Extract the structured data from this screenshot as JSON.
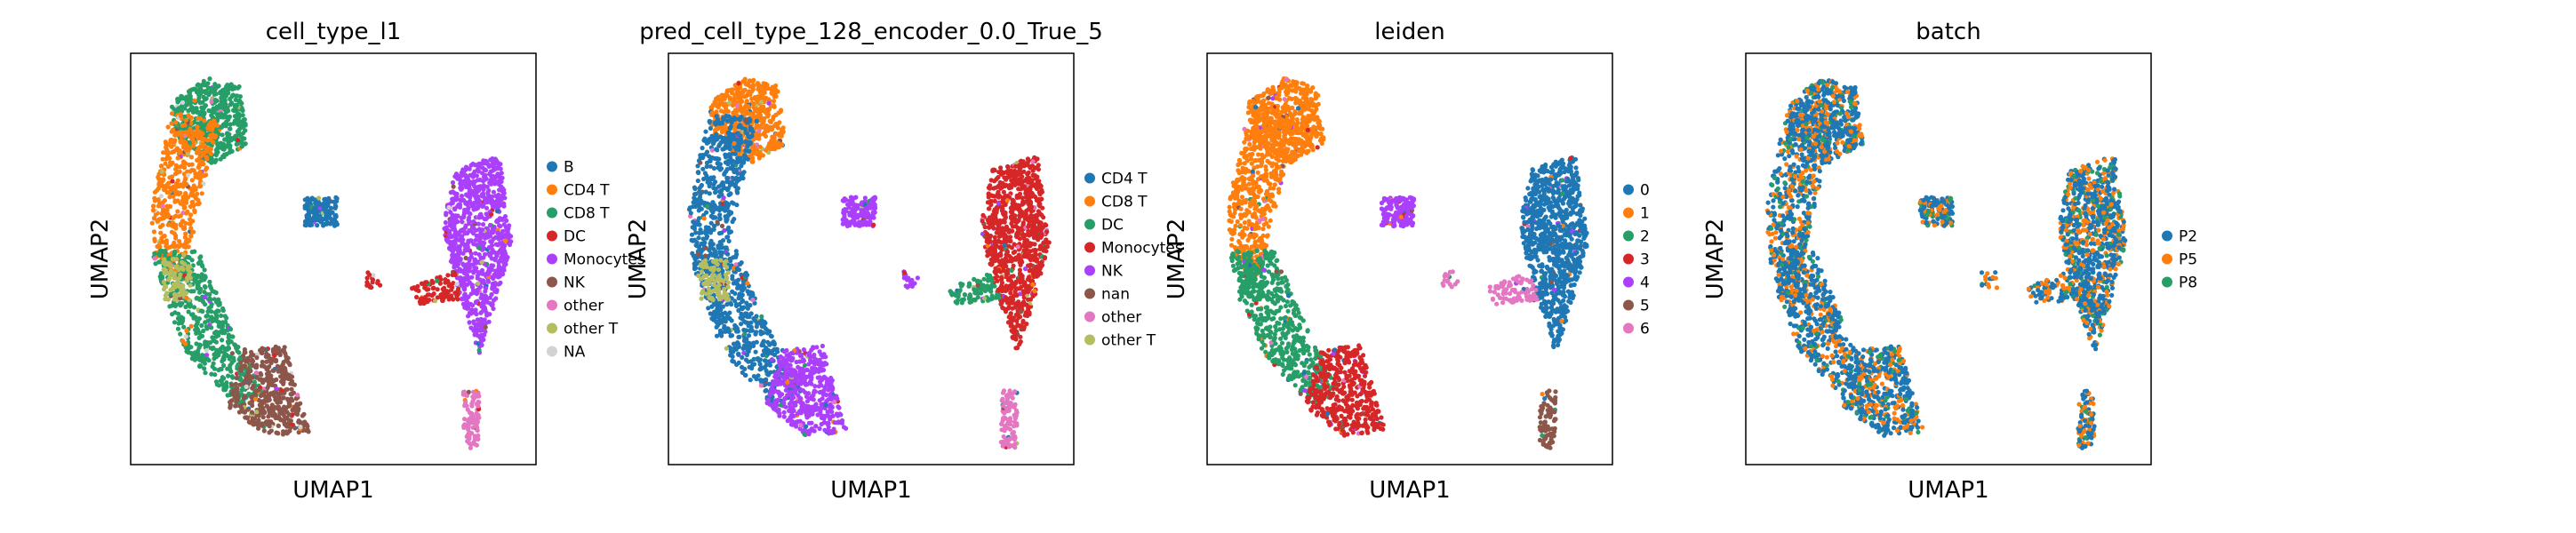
{
  "figure": {
    "axis_x_label": "UMAP1",
    "axis_y_label": "UMAP2"
  },
  "colors": {
    "tab_blue": "#1f77b4",
    "tab_orange": "#ff7f0e",
    "tab_green": "#279e68",
    "tab_red": "#d62728",
    "tab_purple": "#aa40fc",
    "tab_brown": "#8c564b",
    "tab_pink": "#e377c2",
    "tab_olive": "#b5bd61",
    "na_gray": "#d3d3d3"
  },
  "chart_data": [
    {
      "type": "scatter",
      "title": "cell_type_l1",
      "xlabel": "UMAP1",
      "ylabel": "UMAP2",
      "grid": false,
      "legend_placement": "right",
      "legend": [
        {
          "label": "B",
          "color": "#1f77b4"
        },
        {
          "label": "CD4 T",
          "color": "#ff7f0e"
        },
        {
          "label": "CD8 T",
          "color": "#279e68"
        },
        {
          "label": "DC",
          "color": "#d62728"
        },
        {
          "label": "Monocytes",
          "color": "#aa40fc"
        },
        {
          "label": "NK",
          "color": "#8c564b"
        },
        {
          "label": "other",
          "color": "#e377c2"
        },
        {
          "label": "other T",
          "color": "#b5bd61"
        },
        {
          "label": "NA",
          "color": "#d3d3d3"
        }
      ],
      "regions": {
        "top": "CD8 T",
        "left_arm": "CD4 T",
        "left_lower": "CD8 T",
        "bottom_left": "NK",
        "small_blob": "B",
        "right_blob": "Monocytes",
        "right_bridge": "DC",
        "bottom_right": "other",
        "mid_dots": "DC",
        "accent": "other T"
      }
    },
    {
      "type": "scatter",
      "title": "pred_cell_type_128_encoder_0.0_True_5",
      "xlabel": "UMAP1",
      "ylabel": "UMAP2",
      "grid": false,
      "legend_placement": "right",
      "legend": [
        {
          "label": "CD4 T",
          "color": "#1f77b4"
        },
        {
          "label": "CD8 T",
          "color": "#ff7f0e"
        },
        {
          "label": "DC",
          "color": "#279e68"
        },
        {
          "label": "Monocytes",
          "color": "#d62728"
        },
        {
          "label": "NK",
          "color": "#aa40fc"
        },
        {
          "label": "nan",
          "color": "#8c564b"
        },
        {
          "label": "other",
          "color": "#e377c2"
        },
        {
          "label": "other T",
          "color": "#b5bd61"
        }
      ],
      "regions": {
        "top": "CD8 T",
        "left_arm": "CD4 T",
        "left_lower": "CD4 T",
        "bottom_left": "NK",
        "small_blob": "NK",
        "right_blob": "Monocytes",
        "right_bridge": "DC",
        "bottom_right": "other",
        "mid_dots": "NK",
        "accent": "other T"
      }
    },
    {
      "type": "scatter",
      "title": "leiden",
      "xlabel": "UMAP1",
      "ylabel": "UMAP2",
      "grid": false,
      "legend_placement": "right",
      "legend": [
        {
          "label": "0",
          "color": "#1f77b4"
        },
        {
          "label": "1",
          "color": "#ff7f0e"
        },
        {
          "label": "2",
          "color": "#279e68"
        },
        {
          "label": "3",
          "color": "#d62728"
        },
        {
          "label": "4",
          "color": "#aa40fc"
        },
        {
          "label": "5",
          "color": "#8c564b"
        },
        {
          "label": "6",
          "color": "#e377c2"
        }
      ],
      "regions": {
        "top": "1",
        "left_arm": "1",
        "left_lower": "2",
        "bottom_left": "3",
        "small_blob": "4",
        "right_blob": "0",
        "right_bridge": "6",
        "bottom_right": "5",
        "mid_dots": "6",
        "accent": "2"
      }
    },
    {
      "type": "scatter",
      "title": "batch",
      "xlabel": "UMAP1",
      "ylabel": "UMAP2",
      "grid": false,
      "legend_placement": "right",
      "legend": [
        {
          "label": "P2",
          "color": "#1f77b4"
        },
        {
          "label": "P5",
          "color": "#ff7f0e"
        },
        {
          "label": "P8",
          "color": "#279e68"
        }
      ],
      "regions": {
        "top": "P2",
        "left_arm": "P2",
        "left_lower": "P2",
        "bottom_left": "P2",
        "small_blob": "P2",
        "right_blob": "P2",
        "right_bridge": "P2",
        "bottom_right": "P2",
        "mid_dots": "P2",
        "accent": "P5"
      }
    }
  ]
}
